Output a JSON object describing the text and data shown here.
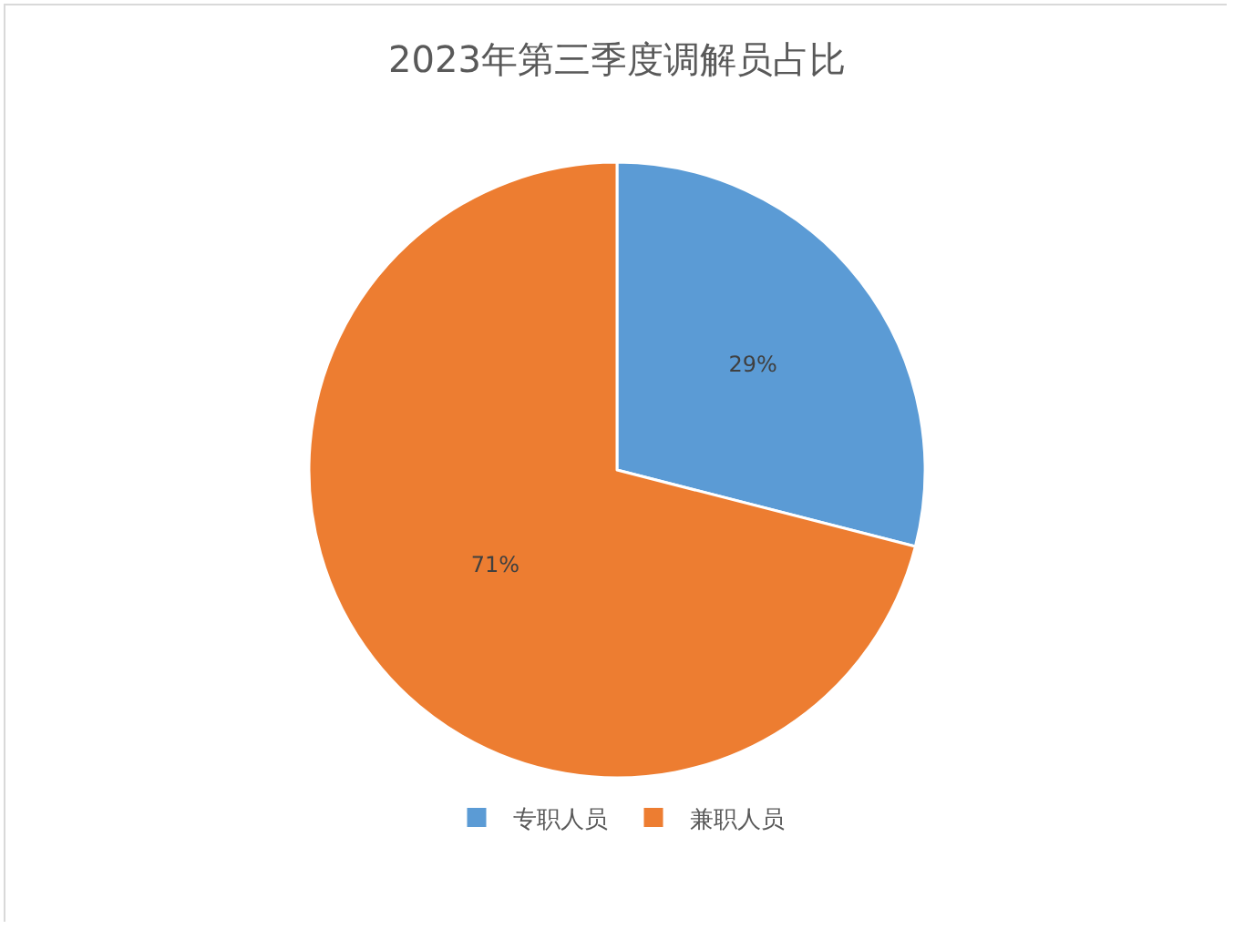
{
  "chart_data": {
    "type": "pie",
    "title": "2023年第三季度调解员占比",
    "categories": [
      "专职人员",
      "兼职人员"
    ],
    "values": [
      29,
      71
    ],
    "colors": [
      "#5b9bd5",
      "#ed7d31"
    ],
    "value_labels": [
      "29%",
      "71%"
    ],
    "legend": "bottom"
  }
}
